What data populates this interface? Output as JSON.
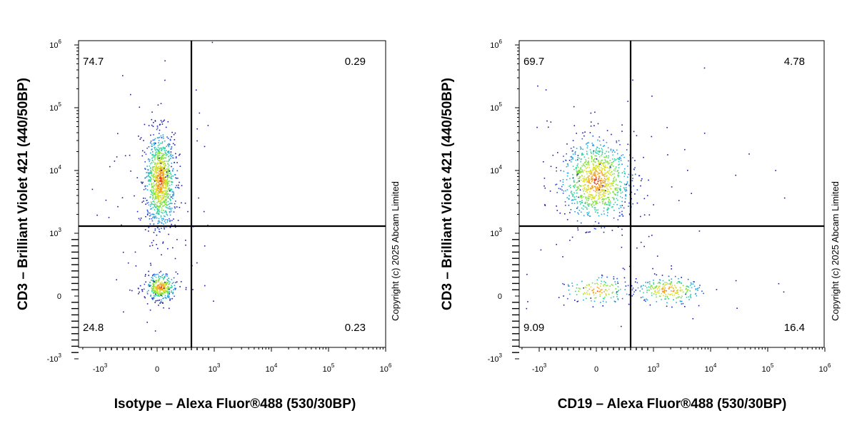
{
  "copyright": "Copyright (c) 2025 Abcam Limited",
  "chart_data": [
    {
      "type": "scatter",
      "subtype": "flow-cytometry-density-dot-plot",
      "xlabel": "Isotype – Alexa Fluor®488 (530/30BP)",
      "ylabel": "CD3 – Brilliant Violet 421  (440/50BP)",
      "x_scale": "biexponential",
      "y_scale": "biexponential",
      "x_ticks": [
        {
          "value": -1000,
          "label": "-10",
          "exp": "3"
        },
        {
          "value": 0,
          "label": "0",
          "exp": ""
        },
        {
          "value": 1000,
          "label": "10",
          "exp": "3"
        },
        {
          "value": 10000,
          "label": "10",
          "exp": "4"
        },
        {
          "value": 100000,
          "label": "10",
          "exp": "5"
        },
        {
          "value": 1000000,
          "label": "10",
          "exp": "6"
        }
      ],
      "y_ticks": [
        {
          "value": -1000,
          "label": "-10",
          "exp": "3"
        },
        {
          "value": 0,
          "label": "0",
          "exp": ""
        },
        {
          "value": 1000,
          "label": "10",
          "exp": "3"
        },
        {
          "value": 10000,
          "label": "10",
          "exp": "4"
        },
        {
          "value": 100000,
          "label": "10",
          "exp": "5"
        },
        {
          "value": 1000000,
          "label": "10",
          "exp": "6"
        }
      ],
      "gate": {
        "x": 600,
        "y": 1300
      },
      "quadrants": {
        "upper_left": "74.7",
        "upper_right": "0.29",
        "lower_left": "24.8",
        "lower_right": "0.23"
      },
      "populations": [
        {
          "x": 50,
          "y": 7000,
          "weight": 74.7
        },
        {
          "x": 50,
          "y": 150,
          "weight": 24.8
        }
      ]
    },
    {
      "type": "scatter",
      "subtype": "flow-cytometry-density-dot-plot",
      "xlabel": "CD19 – Alexa Fluor®488 (530/30BP)",
      "ylabel": "CD3 – Brilliant Violet 421  (440/50BP)",
      "x_scale": "biexponential",
      "y_scale": "biexponential",
      "x_ticks": [
        {
          "value": -1000,
          "label": "-10",
          "exp": "3"
        },
        {
          "value": 0,
          "label": "0",
          "exp": ""
        },
        {
          "value": 1000,
          "label": "10",
          "exp": "3"
        },
        {
          "value": 10000,
          "label": "10",
          "exp": "4"
        },
        {
          "value": 100000,
          "label": "10",
          "exp": "5"
        },
        {
          "value": 1000000,
          "label": "10",
          "exp": "6"
        }
      ],
      "y_ticks": [
        {
          "value": -1000,
          "label": "-10",
          "exp": "3"
        },
        {
          "value": 0,
          "label": "0",
          "exp": ""
        },
        {
          "value": 1000,
          "label": "10",
          "exp": "3"
        },
        {
          "value": 10000,
          "label": "10",
          "exp": "4"
        },
        {
          "value": 100000,
          "label": "10",
          "exp": "5"
        },
        {
          "value": 1000000,
          "label": "10",
          "exp": "6"
        }
      ],
      "gate": {
        "x": 600,
        "y": 1300
      },
      "quadrants": {
        "upper_left": "69.7",
        "upper_right": "4.78",
        "lower_left": "9.09",
        "lower_right": "16.4"
      },
      "populations": [
        {
          "x": 0,
          "y": 7000,
          "weight": 69.7
        },
        {
          "x": 0,
          "y": 100,
          "weight": 9.09
        },
        {
          "x": 1800,
          "y": 100,
          "weight": 16.4
        }
      ]
    }
  ]
}
